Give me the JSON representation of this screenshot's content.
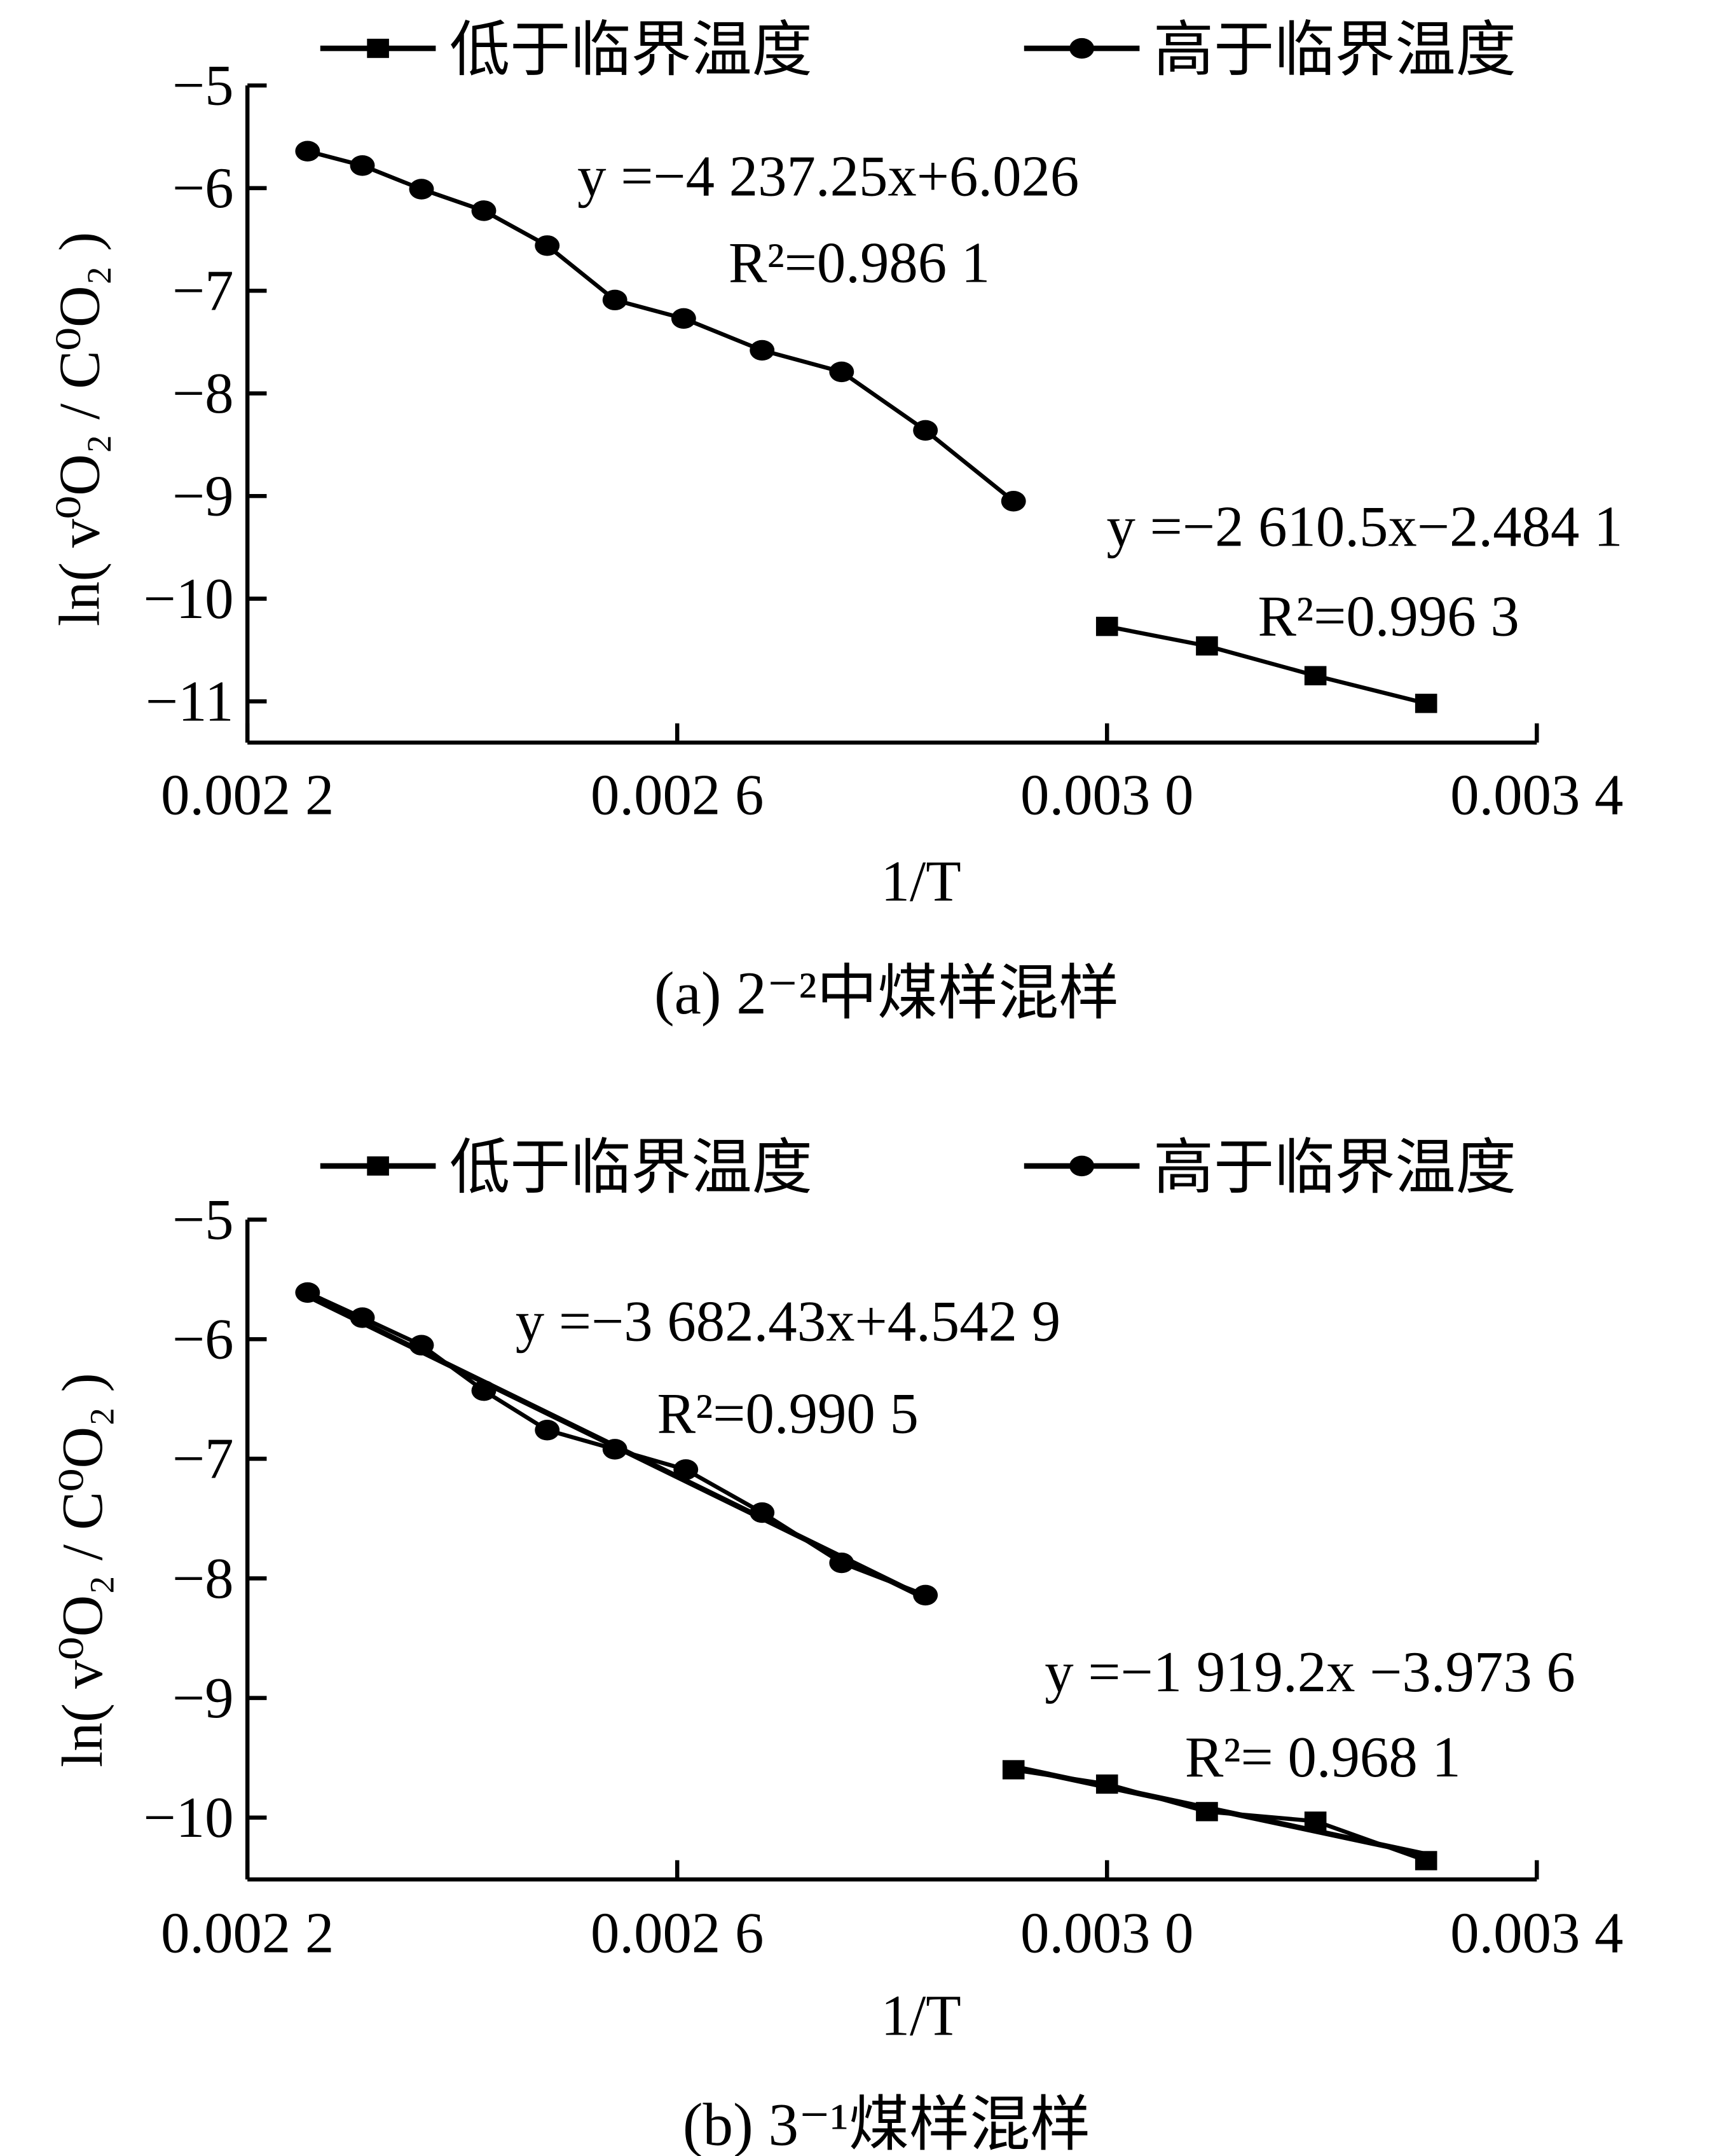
{
  "chart_data": [
    {
      "type": "line",
      "caption": "(a) 2⁻²中煤样混样",
      "xlabel": "1/T",
      "ylabel": "ln( v⁰O₂ / C⁰O₂ )",
      "xlim": [
        0.0022,
        0.0034
      ],
      "ylim": [
        -11,
        -5
      ],
      "xticks": [
        0.0022,
        0.0026,
        0.003,
        0.0034
      ],
      "xtick_labels": [
        "0.002 2",
        "0.002 6",
        "0.003 0",
        "0.003 4"
      ],
      "yticks": [
        -5,
        -6,
        -7,
        -8,
        -9,
        -10,
        -11
      ],
      "ytick_labels": [
        "−5",
        "−6",
        "−7",
        "−8",
        "−9",
        "−10",
        "−11"
      ],
      "grid": false,
      "legend_placement": "top",
      "series": [
        {
          "name": "低于临界温度",
          "marker": "square",
          "trendline": false,
          "equation": "y =−2 610.5x−2.484 1",
          "r2": "R²=0.996 3",
          "x": [
            0.003,
            0.003093,
            0.003194,
            0.003297
          ],
          "y": [
            -10.27,
            -10.46,
            -10.75,
            -11.02
          ]
        },
        {
          "name": "高于临界温度",
          "marker": "circle",
          "trendline": false,
          "equation": "y =−4 237.25x+6.026",
          "r2": "R²=0.986 1",
          "x": [
            0.002256,
            0.002307,
            0.002362,
            0.00242,
            0.002479,
            0.002542,
            0.002606,
            0.002679,
            0.002753,
            0.002831,
            0.002913
          ],
          "y": [
            -5.64,
            -5.78,
            -6.01,
            -6.22,
            -6.56,
            -7.09,
            -7.27,
            -7.58,
            -7.79,
            -8.36,
            -9.05
          ]
        }
      ]
    },
    {
      "type": "line",
      "caption": "(b) 3⁻¹煤样混样",
      "xlabel": "1/T",
      "ylabel": "ln( v⁰O₂ / C⁰O₂ )",
      "xlim": [
        0.0022,
        0.0034
      ],
      "ylim": [
        -10,
        -5
      ],
      "xticks": [
        0.0022,
        0.0026,
        0.003,
        0.0034
      ],
      "xtick_labels": [
        "0.002 2",
        "0.002 6",
        "0.003 0",
        "0.003 4"
      ],
      "yticks": [
        -5,
        -6,
        -7,
        -8,
        -9,
        -10
      ],
      "ytick_labels": [
        "−5",
        "−6",
        "−7",
        "−8",
        "−9",
        "−10"
      ],
      "grid": false,
      "legend_placement": "top",
      "series": [
        {
          "name": "低于临界温度",
          "marker": "square",
          "trendline": true,
          "equation": "y =−1 919.2x −3.973 6",
          "r2": "R²= 0.968 1",
          "x": [
            0.002913,
            0.003,
            0.003093,
            0.003194,
            0.003297
          ],
          "y": [
            -9.6,
            -9.72,
            -9.95,
            -10.03,
            -10.36
          ]
        },
        {
          "name": "高于临界温度",
          "marker": "circle",
          "trendline": true,
          "equation": "y =−3 682.43x+4.542 9",
          "r2": "R²=0.990 5",
          "x": [
            0.002256,
            0.002307,
            0.002362,
            0.00242,
            0.002479,
            0.002542,
            0.002608,
            0.002679,
            0.002753,
            0.002831
          ],
          "y": [
            -5.61,
            -5.82,
            -6.05,
            -6.43,
            -6.76,
            -6.92,
            -7.09,
            -7.45,
            -7.87,
            -8.14
          ]
        }
      ]
    }
  ]
}
